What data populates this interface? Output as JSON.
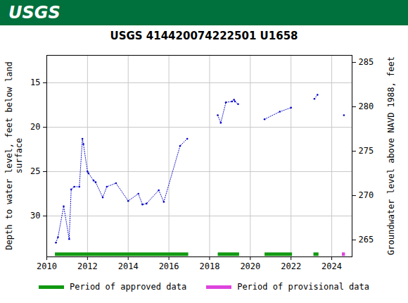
{
  "header": {
    "logo": "USGS"
  },
  "chart_data": {
    "type": "line",
    "title": "USGS 414420074222501 U1658",
    "y_label": "Depth to water level, feet below land surface",
    "y2_label": "Groundwater level above NAVD 1988, feet",
    "x": [
      2010.45,
      2010.55,
      2010.83,
      2011.1,
      2011.2,
      2011.35,
      2011.6,
      2011.75,
      2011.8,
      2012.0,
      2012.05,
      2012.3,
      2012.4,
      2012.75,
      2012.95,
      2013.4,
      2014.0,
      2014.5,
      2014.7,
      2014.9,
      2015.5,
      2015.75,
      2016.55,
      2016.9,
      2017.6,
      2018.4,
      2018.55,
      2018.8,
      2019.1,
      2019.2,
      2019.25,
      2019.4,
      2020.0,
      2020.7,
      2021.45,
      2022.0,
      2022.5,
      2023.15,
      2023.3,
      2023.9,
      2024.6
    ],
    "series": [
      {
        "color": "#0000cc",
        "line_style": "dotted",
        "marker": "dot",
        "values": [
          33.0,
          32.4,
          28.9,
          32.6,
          27.0,
          26.7,
          26.7,
          21.3,
          21.9,
          25.0,
          25.2,
          26.0,
          26.2,
          27.9,
          26.7,
          26.3,
          28.3,
          27.5,
          28.7,
          28.6,
          27.1,
          28.4,
          22.1,
          21.3,
          null,
          18.65,
          19.5,
          17.2,
          17.1,
          16.9,
          17.1,
          17.4,
          null,
          19.1,
          18.25,
          17.8,
          null,
          16.8,
          16.35,
          null,
          18.65
        ]
      }
    ],
    "xlim": [
      2010,
      2025
    ],
    "xticks": [
      2010,
      2012,
      2014,
      2016,
      2018,
      2020,
      2022,
      2024
    ],
    "ylim": [
      11.9,
      34.6
    ],
    "yticks": [
      15,
      20,
      25,
      30
    ],
    "y2lim": [
      263.1,
      285.8
    ],
    "y2ticks": [
      265,
      270,
      275,
      280,
      285
    ],
    "grid": true,
    "legend": "bottom",
    "periods": [
      {
        "name": "Period of approved data",
        "color": "#119911",
        "y": 34.3,
        "ranges": [
          [
            2010.4,
            2016.95
          ],
          [
            2018.4,
            2019.45
          ],
          [
            2020.7,
            2022.05
          ],
          [
            2023.1,
            2023.35
          ]
        ]
      },
      {
        "name": "Period of provisional data",
        "color": "#dd44dd",
        "y": 34.3,
        "ranges": [
          [
            2024.5,
            2024.65
          ]
        ]
      }
    ]
  }
}
